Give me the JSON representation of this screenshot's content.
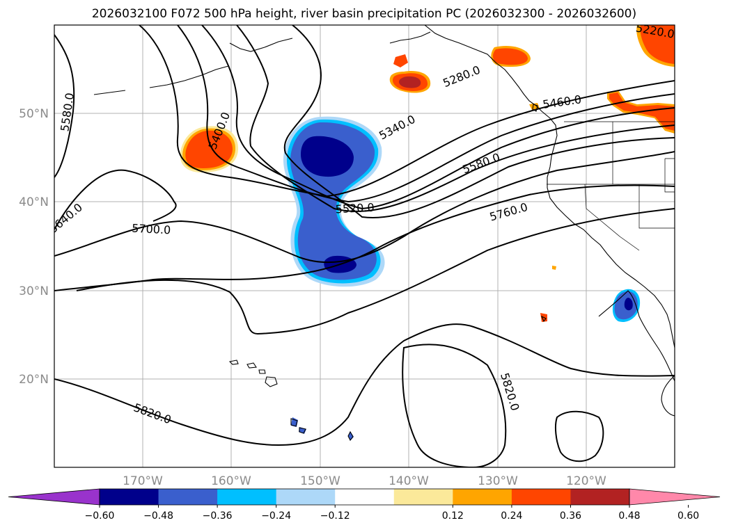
{
  "title": "2026032100 F072 500 hPa height, river basin precipitation PC (2026032300 - 2026032600)",
  "axes": {
    "lat_labels": [
      "50°N",
      "40°N",
      "30°N",
      "20°N"
    ],
    "lon_labels": [
      "170°W",
      "160°W",
      "150°W",
      "140°W",
      "130°W",
      "120°W"
    ]
  },
  "contour_labels": [
    "5220.0",
    "5280.0",
    "5340.0",
    "5400.0",
    "5460.0",
    "5520.0",
    "5580.0",
    "5580.0",
    "5640.0",
    "5700.0",
    "5760.0",
    "5820.0",
    "5820.0"
  ],
  "colorbar": {
    "ticks": [
      "−0.60",
      "−0.48",
      "−0.36",
      "−0.24",
      "−0.12",
      "0.12",
      "0.24",
      "0.36",
      "0.48",
      "0.60"
    ],
    "colors": [
      "#9933cc",
      "#00008b",
      "#3a5fcd",
      "#00bfff",
      "#add8f8",
      "#ffffff",
      "#fbe99a",
      "#ffa500",
      "#ff4500",
      "#b22222",
      "#ff88aa"
    ]
  },
  "chart_data": {
    "type": "map",
    "region": {
      "lon_range": [
        -180,
        -110
      ],
      "lat_range": [
        10,
        60
      ]
    },
    "height_contours_gpm": [
      5220,
      5280,
      5340,
      5400,
      5460,
      5520,
      5580,
      5640,
      5700,
      5760,
      5820
    ],
    "precip_pc_levels": [
      -0.6,
      -0.48,
      -0.36,
      -0.24,
      -0.12,
      0.12,
      0.24,
      0.36,
      0.48,
      0.6
    ],
    "grid": true
  }
}
